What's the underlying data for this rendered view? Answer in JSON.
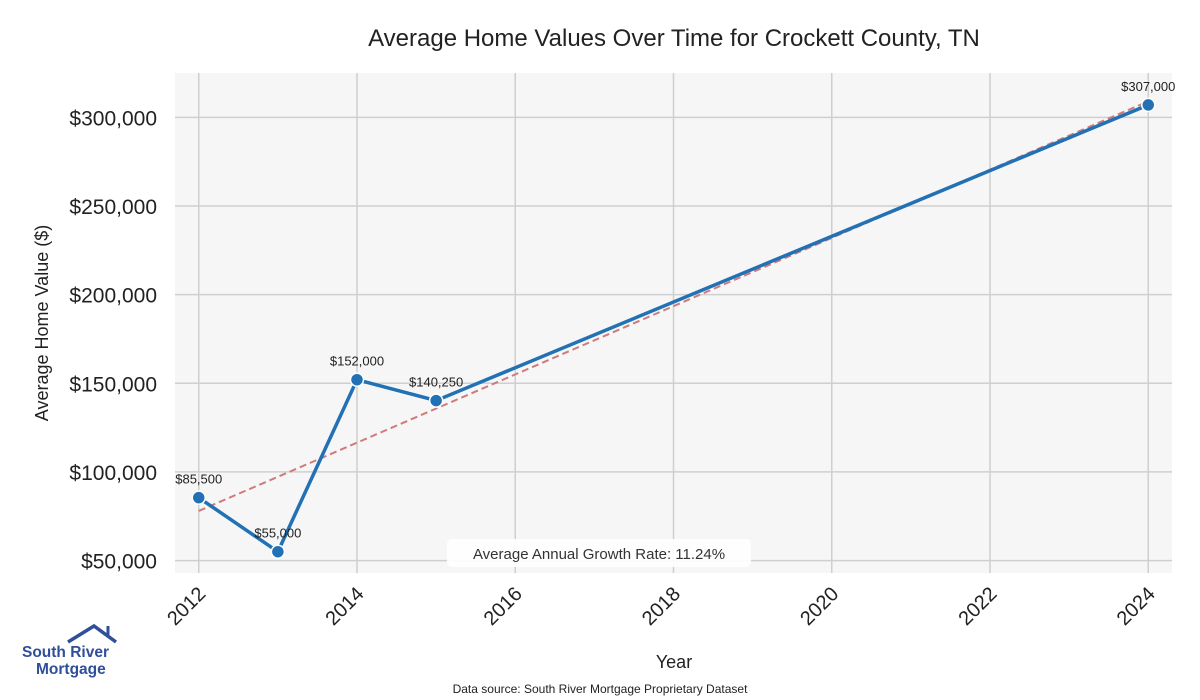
{
  "chart_data": {
    "type": "line",
    "title": "Average Home Values Over Time for Crockett County, TN",
    "xlabel": "Year",
    "ylabel": "Average Home Value ($)",
    "x": [
      2012,
      2013,
      2014,
      2015,
      2024
    ],
    "series": [
      {
        "name": "Average Home Value",
        "values": [
          85500,
          55000,
          152000,
          140250,
          307000
        ],
        "data_labels": [
          "$85,500",
          "$55,000",
          "$152,000",
          "$140,250",
          "$307,000"
        ]
      }
    ],
    "trendline": {
      "style": "dashed",
      "from": [
        2012,
        78000
      ],
      "to": [
        2024,
        309000
      ]
    },
    "xlim": [
      2011.7,
      2024.3
    ],
    "ylim": [
      43000,
      325000
    ],
    "xticks": [
      2012,
      2014,
      2016,
      2018,
      2020,
      2022,
      2024
    ],
    "xtick_labels": [
      "2012",
      "2014",
      "2016",
      "2018",
      "2020",
      "2022",
      "2024"
    ],
    "yticks": [
      50000,
      100000,
      150000,
      200000,
      250000,
      300000
    ],
    "ytick_labels": [
      "$50,000",
      "$100,000",
      "$150,000",
      "$200,000",
      "$250,000",
      "$300,000"
    ],
    "grid": true,
    "annotation": "Average Annual Growth Rate: 11.24%",
    "colors": {
      "line": "#2271b5",
      "trend": "#d07a7a",
      "plot_bg": "#f6f6f6",
      "grid": "#cfcfcf"
    }
  },
  "footer": {
    "source": "Data source: South River Mortgage Proprietary Dataset"
  },
  "brand": {
    "line1": "South River",
    "line2": "Mortgage",
    "color": "#2f4f9a"
  }
}
